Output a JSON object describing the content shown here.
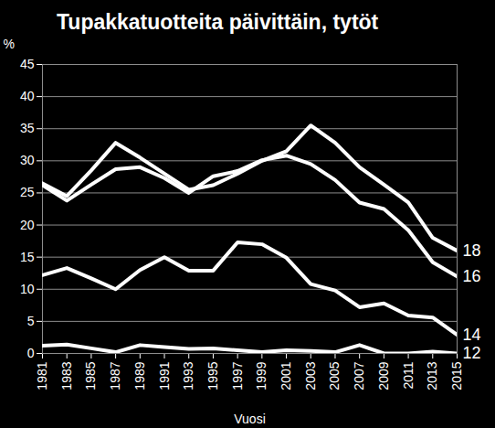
{
  "chart_data": {
    "type": "line",
    "title": "Tupakkatuotteita päivittäin, tytöt",
    "x_label": "Vuosi",
    "y_label": "%",
    "x": [
      1981,
      1983,
      1985,
      1987,
      1989,
      1991,
      1993,
      1995,
      1997,
      1999,
      2001,
      2003,
      2005,
      2007,
      2009,
      2011,
      2013,
      2015
    ],
    "series": [
      {
        "name": "18",
        "color": "#ffffff",
        "values": [
          26.5,
          24.5,
          28.5,
          32.8,
          30.5,
          28,
          25.5,
          26.2,
          28,
          30,
          31.5,
          35.5,
          32.8,
          29,
          26.3,
          23.5,
          18,
          16
        ]
      },
      {
        "name": "16",
        "color": "#ffffff",
        "values": [
          26.2,
          23.8,
          26.3,
          28.7,
          29,
          27.3,
          25,
          27.6,
          28.4,
          30.1,
          30.8,
          29.5,
          27,
          23.5,
          22.5,
          19.2,
          14.2,
          12
        ]
      },
      {
        "name": "14",
        "color": "#ffffff",
        "values": [
          12.2,
          13.3,
          11.7,
          10,
          13,
          15,
          12.9,
          12.9,
          17.3,
          17,
          14.9,
          10.8,
          9.8,
          7.2,
          7.8,
          5.9,
          5.6,
          2.9
        ]
      },
      {
        "name": "12",
        "color": "#ffffff",
        "values": [
          1.2,
          1.4,
          0.8,
          0.2,
          1.3,
          1,
          0.7,
          0.8,
          0.5,
          0.2,
          0.5,
          0.4,
          0.2,
          1.3,
          0,
          0,
          0.3,
          0
        ]
      }
    ],
    "xlim": [
      1981,
      2015
    ],
    "xticks": [
      1981,
      1983,
      1985,
      1987,
      1989,
      1991,
      1993,
      1995,
      1997,
      1999,
      2001,
      2003,
      2005,
      2007,
      2009,
      2011,
      2013,
      2015
    ],
    "ylim": [
      0,
      45
    ],
    "yticks": [
      0,
      5,
      10,
      15,
      20,
      25,
      30,
      35,
      40,
      45
    ],
    "grid": true
  }
}
